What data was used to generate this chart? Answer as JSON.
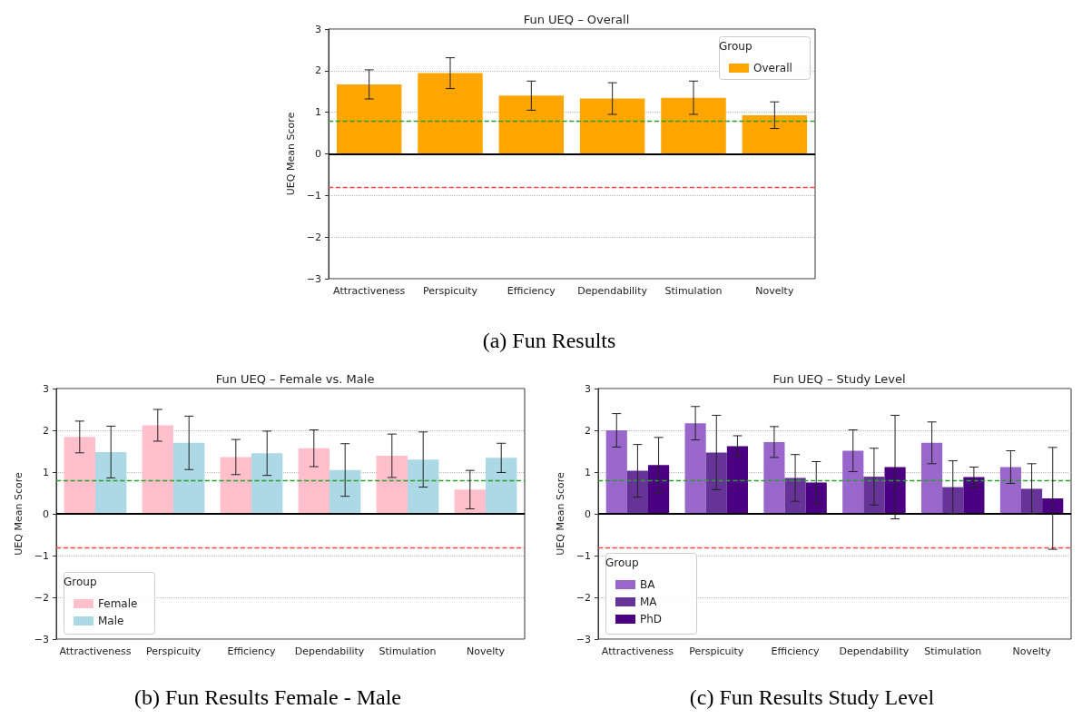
{
  "chart_data": [
    {
      "type": "bar",
      "title": "Fun UEQ – Overall",
      "ylabel": "UEQ Mean Score",
      "legend_title": "Group",
      "annotations": [
        "(a) Fun Results"
      ],
      "categories": [
        "Attractiveness",
        "Perspicuity",
        "Efficiency",
        "Dependability",
        "Stimulation",
        "Novelty"
      ],
      "series": [
        {
          "name": "Overall",
          "color": "#ffa500",
          "values": [
            1.67,
            1.94,
            1.4,
            1.33,
            1.35,
            0.93
          ],
          "errors": [
            0.35,
            0.37,
            0.35,
            0.38,
            0.4,
            0.32
          ]
        }
      ],
      "ylim": [
        -3,
        3
      ],
      "yticks": [
        3,
        2,
        1,
        0,
        {
          "value": -1,
          "label": "−1"
        },
        {
          "value": -2,
          "label": "−2"
        },
        {
          "value": -3,
          "label": "−3"
        }
      ],
      "ref_lines": [
        {
          "axis": "y",
          "value": 0,
          "color": "#000000",
          "line_style": "solid"
        },
        {
          "axis": "y",
          "value": 0.8,
          "color": "#2ca02c",
          "line_style": "dashed"
        },
        {
          "axis": "y",
          "value": -0.8,
          "color": "#ff4444",
          "line_style": "dashed"
        }
      ],
      "grid": "y",
      "legend": "top right"
    },
    {
      "type": "bar",
      "title": "Fun UEQ – Female vs. Male",
      "ylabel": "UEQ Mean Score",
      "legend_title": "Group",
      "annotations": [
        "(b) Fun Results Female - Male"
      ],
      "categories": [
        "Attractiveness",
        "Perspicuity",
        "Efficiency",
        "Dependability",
        "Stimulation",
        "Novelty"
      ],
      "series": [
        {
          "name": "Female",
          "color": "#ffc0cb",
          "values": [
            1.84,
            2.12,
            1.36,
            1.57,
            1.39,
            0.58
          ],
          "errors": [
            0.38,
            0.38,
            0.42,
            0.44,
            0.52,
            0.46
          ]
        },
        {
          "name": "Male",
          "color": "#add8e6",
          "values": [
            1.48,
            1.7,
            1.45,
            1.05,
            1.3,
            1.34
          ],
          "errors": [
            0.62,
            0.64,
            0.53,
            0.63,
            0.66,
            0.35
          ]
        }
      ],
      "ylim": [
        -3,
        3
      ],
      "yticks": [
        3,
        2,
        1,
        0,
        {
          "value": -1,
          "label": "−1"
        },
        {
          "value": -2,
          "label": "−2"
        },
        {
          "value": -3,
          "label": "−3"
        }
      ],
      "ref_lines": [
        {
          "axis": "y",
          "value": 0,
          "color": "#000000",
          "line_style": "solid"
        },
        {
          "axis": "y",
          "value": 0.8,
          "color": "#2ca02c",
          "line_style": "dashed"
        },
        {
          "axis": "y",
          "value": -0.8,
          "color": "#ff4444",
          "line_style": "dashed"
        }
      ],
      "grid": "y",
      "legend": "bottom left"
    },
    {
      "type": "bar",
      "title": "Fun UEQ – Study Level",
      "ylabel": "UEQ Mean Score",
      "legend_title": "Group",
      "annotations": [
        "(c) Fun Results Study Level"
      ],
      "categories": [
        "Attractiveness",
        "Perspicuity",
        "Efficiency",
        "Dependability",
        "Stimulation",
        "Novelty"
      ],
      "series": [
        {
          "name": "BA",
          "color": "#9966cc",
          "values": [
            2.0,
            2.17,
            1.72,
            1.51,
            1.7,
            1.12
          ],
          "errors": [
            0.4,
            0.4,
            0.37,
            0.5,
            0.5,
            0.39
          ]
        },
        {
          "name": "MA",
          "color": "#663399",
          "values": [
            1.03,
            1.47,
            0.86,
            0.89,
            0.64,
            0.6
          ],
          "errors": [
            0.63,
            0.89,
            0.56,
            0.68,
            0.63,
            0.6
          ]
        },
        {
          "name": "PhD",
          "color": "#4b0082",
          "values": [
            1.17,
            1.62,
            0.75,
            1.12,
            0.88,
            0.37
          ],
          "errors": [
            0.66,
            0.25,
            0.5,
            1.24,
            0.24,
            1.22
          ]
        }
      ],
      "ylim": [
        -3,
        3
      ],
      "yticks": [
        3,
        2,
        1,
        0,
        {
          "value": -1,
          "label": "−1"
        },
        {
          "value": -2,
          "label": "−2"
        },
        {
          "value": -3,
          "label": "−3"
        }
      ],
      "ref_lines": [
        {
          "axis": "y",
          "value": 0,
          "color": "#000000",
          "line_style": "solid"
        },
        {
          "axis": "y",
          "value": 0.8,
          "color": "#2ca02c",
          "line_style": "dashed"
        },
        {
          "axis": "y",
          "value": -0.8,
          "color": "#ff4444",
          "line_style": "dashed"
        }
      ],
      "grid": "y",
      "legend": "bottom left"
    }
  ]
}
